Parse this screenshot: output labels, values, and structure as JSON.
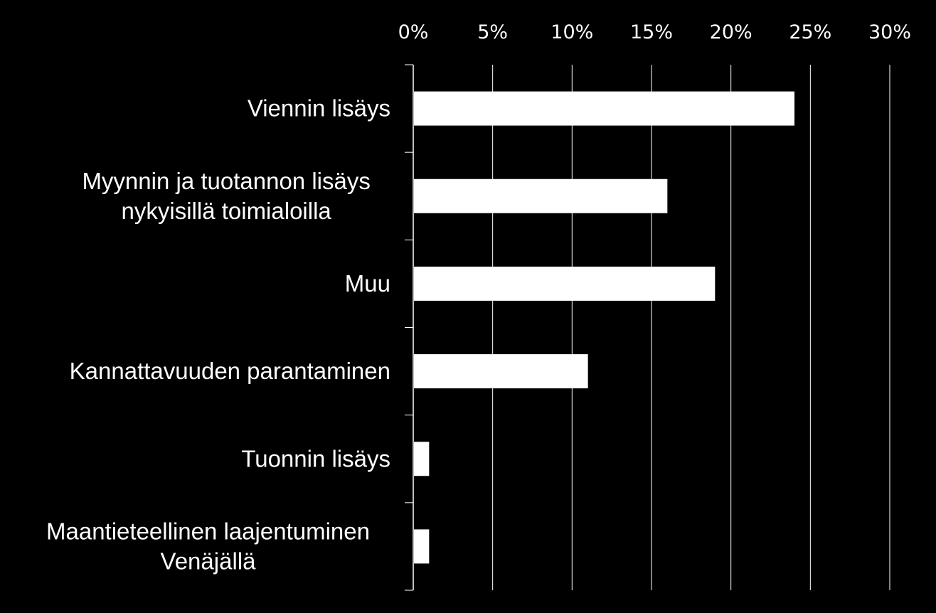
{
  "chart_data": {
    "type": "bar",
    "orientation": "horizontal",
    "categories": [
      [
        "Viennin lisäys"
      ],
      [
        "Myynnin ja tuotannon lisäys",
        "nykyisillä toimialoilla"
      ],
      [
        "Muu"
      ],
      [
        "Kannattavuuden parantaminen"
      ],
      [
        "Tuonnin lisäys"
      ],
      [
        "Maantieteellinen laajentuminen",
        "Venäjällä"
      ]
    ],
    "values": [
      24,
      16,
      19,
      11,
      1,
      1
    ],
    "xlim": [
      0,
      30
    ],
    "ticks": [
      0,
      5,
      10,
      15,
      20,
      25,
      30
    ],
    "tick_labels": [
      "0%",
      "5%",
      "10%",
      "15%",
      "20%",
      "25%",
      "30%"
    ],
    "axis_position": "top",
    "grid": true,
    "legend": "none",
    "colors": {
      "background": "#000000",
      "bar": "#ffffff",
      "text": "#ffffff",
      "grid": "#ffffff"
    }
  }
}
